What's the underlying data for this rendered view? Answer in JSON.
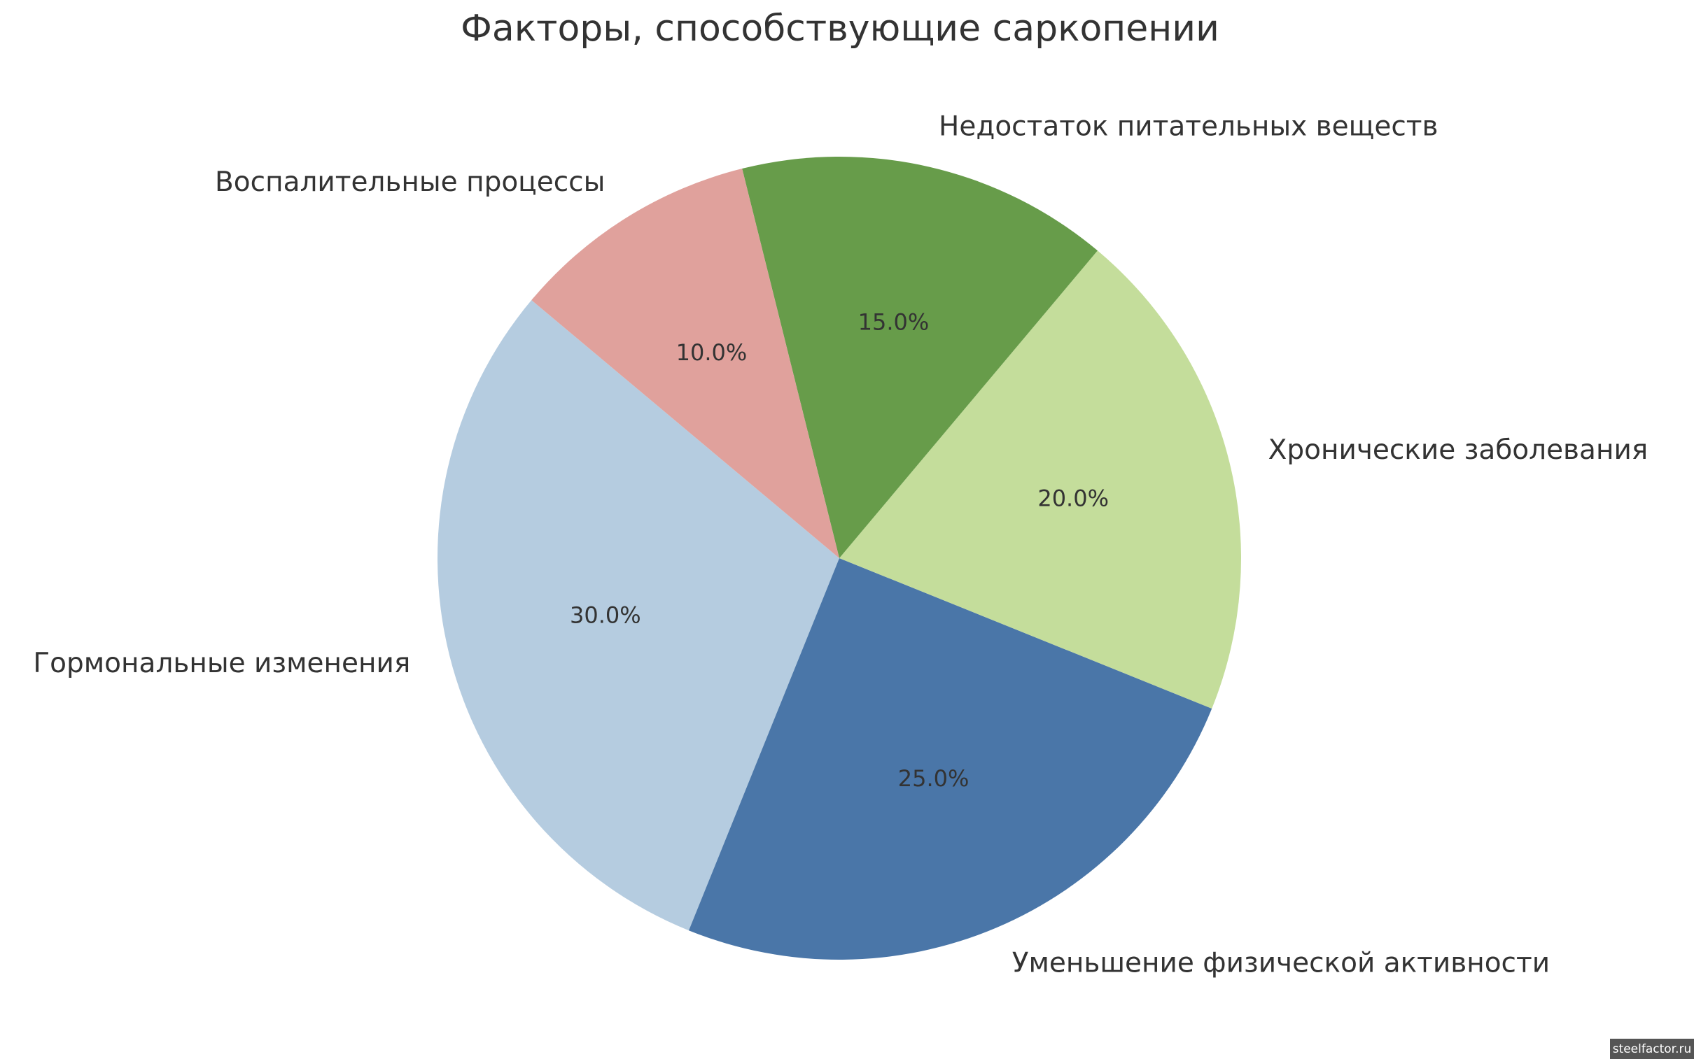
{
  "chart_data": {
    "type": "pie",
    "title": "Факторы, способствующие саркопении",
    "categories": [
      "Гормональные изменения",
      "Уменьшение физической активности",
      "Хронические заболевания",
      "Недостаток питательных веществ",
      "Воспалительные процессы"
    ],
    "values": [
      30,
      25,
      20,
      15,
      10
    ],
    "value_labels": [
      "30.0%",
      "25.0%",
      "20.0%",
      "15.0%",
      "10.0%"
    ],
    "colors": [
      "#b5cce0",
      "#4a76a8",
      "#c4dd9b",
      "#679c4a",
      "#e0a19c"
    ],
    "start_angle": 140,
    "watermark": "steelfactor.ru"
  }
}
